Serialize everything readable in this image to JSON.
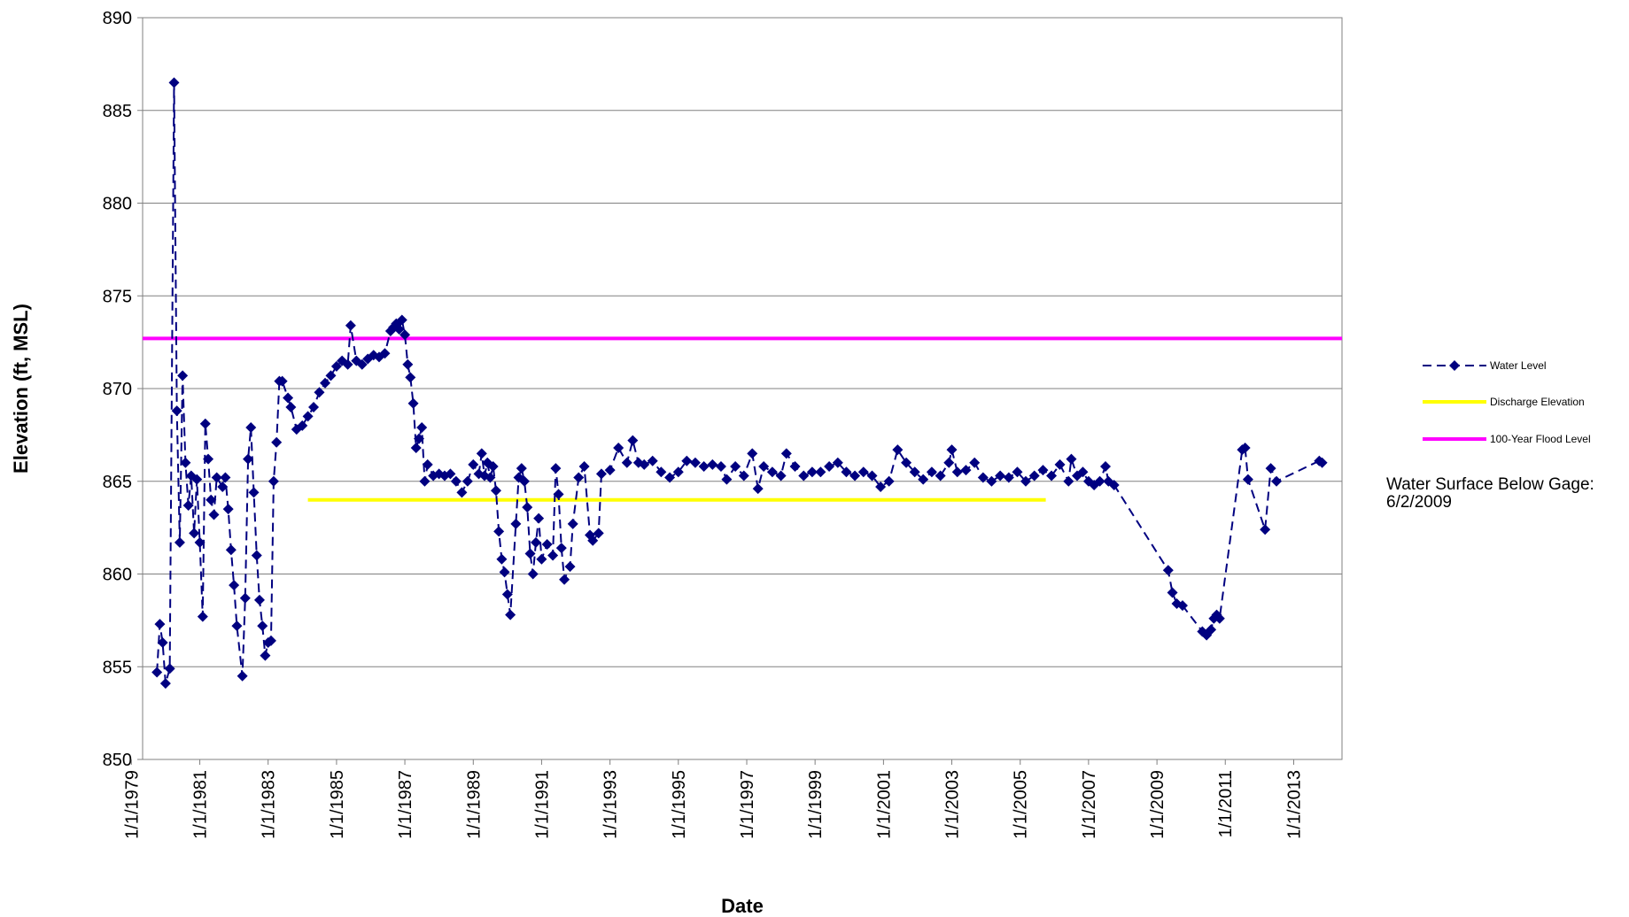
{
  "chart_data": {
    "type": "line",
    "xlabel": "Date",
    "ylabel": "Elevation (ft, MSL)",
    "ylim": [
      850,
      890
    ],
    "y_ticks": [
      "850",
      "855",
      "860",
      "865",
      "870",
      "875",
      "880",
      "885",
      "890"
    ],
    "xlim": [
      "1979-05-01",
      "2014-06-01"
    ],
    "x_ticks": [
      "1/1/1979",
      "1/1/1981",
      "1/1/1983",
      "1/1/1985",
      "1/1/1987",
      "1/1/1989",
      "1/1/1991",
      "1/1/1993",
      "1/1/1995",
      "1/1/1997",
      "1/1/1999",
      "1/1/2001",
      "1/1/2003",
      "1/1/2005",
      "1/1/2007",
      "1/1/2009",
      "1/1/2011",
      "1/1/2013"
    ],
    "grid": "horizontal",
    "legend": "right",
    "annotation": "Water Surface Below Gage: 6/2/2009",
    "series": [
      {
        "name": "Water Level",
        "color": "#000080",
        "style": "dashed line with diamond markers",
        "points": [
          [
            "1979-10-01",
            854.7
          ],
          [
            "1979-11-01",
            857.3
          ],
          [
            "1979-12-01",
            856.3
          ],
          [
            "1980-01-01",
            854.1
          ],
          [
            "1980-02-15",
            854.9
          ],
          [
            "1980-04-01",
            886.5
          ],
          [
            "1980-05-01",
            868.8
          ],
          [
            "1980-06-01",
            861.7
          ],
          [
            "1980-07-01",
            870.7
          ],
          [
            "1980-08-01",
            866.0
          ],
          [
            "1980-09-01",
            863.7
          ],
          [
            "1980-10-01",
            865.3
          ],
          [
            "1980-11-01",
            862.2
          ],
          [
            "1980-12-01",
            865.1
          ],
          [
            "1981-01-01",
            861.7
          ],
          [
            "1981-02-01",
            857.7
          ],
          [
            "1981-03-01",
            868.1
          ],
          [
            "1981-04-01",
            866.2
          ],
          [
            "1981-05-01",
            864.0
          ],
          [
            "1981-06-01",
            863.2
          ],
          [
            "1981-07-01",
            865.2
          ],
          [
            "1981-09-01",
            864.7
          ],
          [
            "1981-10-01",
            865.2
          ],
          [
            "1981-11-01",
            863.5
          ],
          [
            "1981-12-01",
            861.3
          ],
          [
            "1982-01-01",
            859.4
          ],
          [
            "1982-02-01",
            857.2
          ],
          [
            "1982-04-01",
            854.5
          ],
          [
            "1982-05-01",
            858.7
          ],
          [
            "1982-06-01",
            866.2
          ],
          [
            "1982-07-01",
            867.9
          ],
          [
            "1982-08-01",
            864.4
          ],
          [
            "1982-09-01",
            861.0
          ],
          [
            "1982-10-01",
            858.6
          ],
          [
            "1982-11-01",
            857.2
          ],
          [
            "1982-12-01",
            855.6
          ],
          [
            "1983-01-01",
            856.3
          ],
          [
            "1983-02-01",
            856.4
          ],
          [
            "1983-03-01",
            865.0
          ],
          [
            "1983-04-01",
            867.1
          ],
          [
            "1983-05-01",
            870.4
          ],
          [
            "1983-06-01",
            870.4
          ],
          [
            "1983-08-01",
            869.5
          ],
          [
            "1983-09-01",
            869.0
          ],
          [
            "1983-11-01",
            867.8
          ],
          [
            "1984-01-01",
            868.0
          ],
          [
            "1984-03-01",
            868.5
          ],
          [
            "1984-05-01",
            869.0
          ],
          [
            "1984-07-01",
            869.8
          ],
          [
            "1984-09-01",
            870.3
          ],
          [
            "1984-11-01",
            870.7
          ],
          [
            "1985-01-01",
            871.2
          ],
          [
            "1985-03-01",
            871.5
          ],
          [
            "1985-05-01",
            871.3
          ],
          [
            "1985-06-01",
            873.4
          ],
          [
            "1985-08-01",
            871.5
          ],
          [
            "1985-10-01",
            871.3
          ],
          [
            "1985-12-01",
            871.6
          ],
          [
            "1986-02-01",
            871.8
          ],
          [
            "1986-04-01",
            871.7
          ],
          [
            "1986-06-01",
            871.9
          ],
          [
            "1986-08-01",
            873.1
          ],
          [
            "1986-09-01",
            873.3
          ],
          [
            "1986-10-01",
            873.5
          ],
          [
            "1986-11-01",
            873.2
          ],
          [
            "1986-12-01",
            873.7
          ],
          [
            "1987-01-01",
            872.9
          ],
          [
            "1987-02-01",
            871.3
          ],
          [
            "1987-03-01",
            870.6
          ],
          [
            "1987-04-01",
            869.2
          ],
          [
            "1987-05-01",
            866.8
          ],
          [
            "1987-06-01",
            867.3
          ],
          [
            "1987-07-01",
            867.9
          ],
          [
            "1987-08-01",
            865.0
          ],
          [
            "1987-09-01",
            865.9
          ],
          [
            "1987-11-01",
            865.3
          ],
          [
            "1988-01-01",
            865.4
          ],
          [
            "1988-03-01",
            865.3
          ],
          [
            "1988-05-01",
            865.4
          ],
          [
            "1988-07-01",
            865.0
          ],
          [
            "1988-09-01",
            864.4
          ],
          [
            "1988-11-01",
            865.0
          ],
          [
            "1989-01-01",
            865.9
          ],
          [
            "1989-03-01",
            865.4
          ],
          [
            "1989-04-01",
            866.5
          ],
          [
            "1989-05-01",
            865.3
          ],
          [
            "1989-06-01",
            866.0
          ],
          [
            "1989-07-01",
            865.2
          ],
          [
            "1989-08-01",
            865.8
          ],
          [
            "1989-09-01",
            864.5
          ],
          [
            "1989-10-01",
            862.3
          ],
          [
            "1989-11-01",
            860.8
          ],
          [
            "1989-12-01",
            860.1
          ],
          [
            "1990-01-01",
            858.9
          ],
          [
            "1990-02-01",
            857.8
          ],
          [
            "1990-04-01",
            862.7
          ],
          [
            "1990-05-01",
            865.2
          ],
          [
            "1990-06-01",
            865.7
          ],
          [
            "1990-07-01",
            865.0
          ],
          [
            "1990-08-01",
            863.6
          ],
          [
            "1990-09-01",
            861.1
          ],
          [
            "1990-10-01",
            860.0
          ],
          [
            "1990-11-01",
            861.7
          ],
          [
            "1990-12-01",
            863.0
          ],
          [
            "1991-01-01",
            860.8
          ],
          [
            "1991-03-01",
            861.6
          ],
          [
            "1991-05-01",
            861.0
          ],
          [
            "1991-06-01",
            865.7
          ],
          [
            "1991-07-01",
            864.3
          ],
          [
            "1991-08-01",
            861.4
          ],
          [
            "1991-09-01",
            859.7
          ],
          [
            "1991-11-01",
            860.4
          ],
          [
            "1991-12-01",
            862.7
          ],
          [
            "1992-02-01",
            865.2
          ],
          [
            "1992-04-01",
            865.8
          ],
          [
            "1992-06-01",
            862.1
          ],
          [
            "1992-07-01",
            861.8
          ],
          [
            "1992-09-01",
            862.2
          ],
          [
            "1992-10-01",
            865.4
          ],
          [
            "1993-01-01",
            865.6
          ],
          [
            "1993-04-01",
            866.8
          ],
          [
            "1993-07-01",
            866.0
          ],
          [
            "1993-09-01",
            867.2
          ],
          [
            "1993-11-01",
            866.0
          ],
          [
            "1994-01-01",
            865.9
          ],
          [
            "1994-04-01",
            866.1
          ],
          [
            "1994-07-01",
            865.5
          ],
          [
            "1994-10-01",
            865.2
          ],
          [
            "1995-01-01",
            865.5
          ],
          [
            "1995-04-01",
            866.1
          ],
          [
            "1995-07-01",
            866.0
          ],
          [
            "1995-10-01",
            865.8
          ],
          [
            "1996-01-01",
            865.9
          ],
          [
            "1996-04-01",
            865.8
          ],
          [
            "1996-06-01",
            865.1
          ],
          [
            "1996-09-01",
            865.8
          ],
          [
            "1996-12-01",
            865.3
          ],
          [
            "1997-03-01",
            866.5
          ],
          [
            "1997-05-01",
            864.6
          ],
          [
            "1997-07-01",
            865.8
          ],
          [
            "1997-10-01",
            865.5
          ],
          [
            "1998-01-01",
            865.3
          ],
          [
            "1998-03-01",
            866.5
          ],
          [
            "1998-06-01",
            865.8
          ],
          [
            "1998-09-01",
            865.3
          ],
          [
            "1998-12-01",
            865.5
          ],
          [
            "1999-03-01",
            865.5
          ],
          [
            "1999-06-01",
            865.8
          ],
          [
            "1999-09-01",
            866.0
          ],
          [
            "1999-12-01",
            865.5
          ],
          [
            "2000-03-01",
            865.3
          ],
          [
            "2000-06-01",
            865.5
          ],
          [
            "2000-09-01",
            865.3
          ],
          [
            "2000-12-01",
            864.7
          ],
          [
            "2001-03-01",
            865.0
          ],
          [
            "2001-06-01",
            866.7
          ],
          [
            "2001-09-01",
            866.0
          ],
          [
            "2001-12-01",
            865.5
          ],
          [
            "2002-03-01",
            865.1
          ],
          [
            "2002-06-01",
            865.5
          ],
          [
            "2002-09-01",
            865.3
          ],
          [
            "2002-12-01",
            866.0
          ],
          [
            "2003-01-01",
            866.7
          ],
          [
            "2003-03-01",
            865.5
          ],
          [
            "2003-06-01",
            865.6
          ],
          [
            "2003-09-01",
            866.0
          ],
          [
            "2003-12-01",
            865.2
          ],
          [
            "2004-03-01",
            865.0
          ],
          [
            "2004-06-01",
            865.3
          ],
          [
            "2004-09-01",
            865.2
          ],
          [
            "2004-12-01",
            865.5
          ],
          [
            "2005-03-01",
            865.0
          ],
          [
            "2005-06-01",
            865.3
          ],
          [
            "2005-09-01",
            865.6
          ],
          [
            "2005-12-01",
            865.3
          ],
          [
            "2006-03-01",
            865.9
          ],
          [
            "2006-06-01",
            865.0
          ],
          [
            "2006-07-01",
            866.2
          ],
          [
            "2006-09-01",
            865.3
          ],
          [
            "2006-11-01",
            865.5
          ],
          [
            "2007-01-01",
            865.0
          ],
          [
            "2007-03-01",
            864.8
          ],
          [
            "2007-05-01",
            865.0
          ],
          [
            "2007-07-01",
            865.8
          ],
          [
            "2007-08-01",
            865.0
          ],
          [
            "2007-10-01",
            864.8
          ],
          [
            "2009-05-01",
            860.2
          ],
          [
            "2009-06-15",
            859.0
          ],
          [
            "2009-08-01",
            858.4
          ],
          [
            "2009-10-01",
            858.3
          ],
          [
            "2010-05-01",
            856.9
          ],
          [
            "2010-06-15",
            856.7
          ],
          [
            "2010-08-01",
            857.0
          ],
          [
            "2010-09-01",
            857.6
          ],
          [
            "2010-10-01",
            857.8
          ],
          [
            "2010-11-01",
            857.6
          ],
          [
            "2011-07-01",
            866.7
          ],
          [
            "2011-08-01",
            866.8
          ],
          [
            "2011-09-01",
            865.1
          ],
          [
            "2012-03-01",
            862.4
          ],
          [
            "2012-05-01",
            865.7
          ],
          [
            "2012-07-01",
            865.0
          ],
          [
            "2013-10-01",
            866.1
          ],
          [
            "2013-11-01",
            866.0
          ]
        ]
      },
      {
        "name": "Discharge Elevation",
        "color": "#ffff00",
        "style": "solid line",
        "points": [
          [
            "1984-03-01",
            864.0
          ],
          [
            "2005-10-01",
            864.0
          ]
        ]
      },
      {
        "name": "100-Year Flood Level",
        "color": "#ff00ff",
        "style": "solid line",
        "points": [
          [
            "1979-05-01",
            872.7
          ],
          [
            "2014-06-01",
            872.7
          ]
        ]
      }
    ]
  }
}
